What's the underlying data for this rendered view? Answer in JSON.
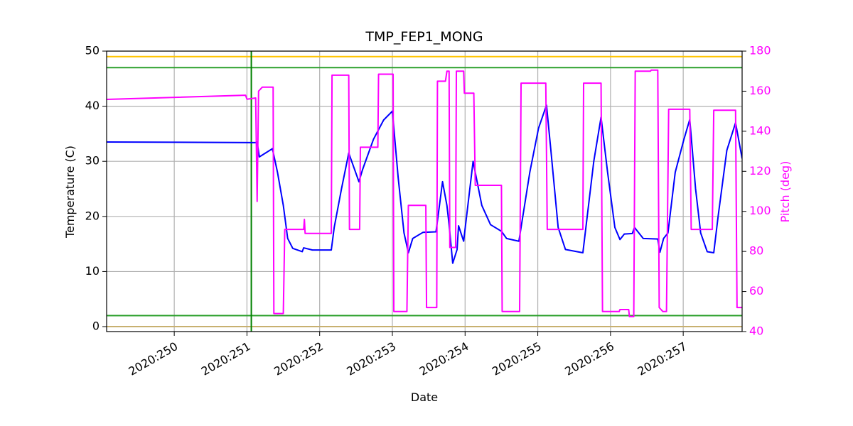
{
  "chart_data": {
    "type": "line",
    "title": "TMP_FEP1_MONG",
    "xlabel": "Date",
    "ylabel": "Temperature (C)",
    "y2label": "Pitch (deg)",
    "y2color": "#ff00ff",
    "grid": true,
    "xlim": [
      249.07,
      257.81
    ],
    "xticks": [
      {
        "value": 250,
        "label": "2020:250"
      },
      {
        "value": 251,
        "label": "2020:251"
      },
      {
        "value": 252,
        "label": "2020:252"
      },
      {
        "value": 253,
        "label": "2020:253"
      },
      {
        "value": 254,
        "label": "2020:254"
      },
      {
        "value": 255,
        "label": "2020:255"
      },
      {
        "value": 256,
        "label": "2020:256"
      },
      {
        "value": 257,
        "label": "2020:257"
      }
    ],
    "ylim": [
      -0.9,
      50
    ],
    "yticks": [
      0,
      10,
      20,
      30,
      40,
      50
    ],
    "y2lim": [
      40,
      180
    ],
    "y2ticks": [
      40,
      60,
      80,
      100,
      120,
      140,
      160,
      180
    ],
    "hlines": [
      {
        "value": 49,
        "color": "#ffc400"
      },
      {
        "value": 47,
        "color": "#2ca02c"
      },
      {
        "value": 2,
        "color": "#2ca02c"
      },
      {
        "value": 0,
        "color": "#c8b070"
      }
    ],
    "vlines": [
      {
        "value": 251.06,
        "color": "#008000"
      }
    ],
    "series": [
      {
        "name": "TMP_FEP1_MONG",
        "color": "#0000ff",
        "x": [
          249.07,
          251.12,
          251.14,
          251.17,
          251.35,
          251.42,
          251.5,
          251.56,
          251.63,
          251.76,
          251.78,
          251.9,
          252.16,
          252.2,
          252.3,
          252.4,
          252.54,
          252.59,
          252.74,
          252.88,
          253.0,
          253.08,
          253.16,
          253.22,
          253.28,
          253.42,
          253.6,
          253.69,
          253.75,
          253.78,
          253.83,
          253.89,
          253.91,
          253.98,
          254.11,
          254.23,
          254.35,
          254.5,
          254.57,
          254.74,
          254.89,
          255.01,
          255.12,
          255.18,
          255.28,
          255.38,
          255.62,
          255.77,
          255.87,
          255.96,
          256.06,
          256.13,
          256.19,
          256.3,
          256.33,
          256.45,
          256.65,
          256.68,
          256.73,
          256.79,
          256.89,
          257.01,
          257.09,
          257.17,
          257.24,
          257.33,
          257.42,
          257.48,
          257.6,
          257.72,
          257.81
        ],
        "values": [
          33.5,
          33.4,
          33.5,
          30.8,
          32.3,
          28,
          22,
          16,
          14.2,
          13.6,
          14.3,
          13.9,
          13.9,
          18,
          25,
          31.5,
          26.3,
          28.5,
          34,
          37.5,
          39.1,
          27,
          17,
          13.4,
          16,
          17.1,
          17.2,
          26.3,
          22,
          18.5,
          11.5,
          14,
          18.3,
          15.5,
          30,
          22,
          18.5,
          17.3,
          16,
          15.5,
          28,
          36,
          40.2,
          32,
          18,
          14,
          13.4,
          30,
          38,
          28,
          18,
          15.8,
          16.8,
          16.9,
          18,
          16,
          15.9,
          13.5,
          16,
          17,
          28,
          34,
          37.6,
          25,
          17,
          13.6,
          13.4,
          20,
          32,
          37,
          30.5
        ]
      },
      {
        "name": "Pitch",
        "color": "#ff00ff",
        "axis": "y2",
        "x": [
          249.07,
          250.98,
          251.0,
          251.12,
          251.14,
          251.16,
          251.21,
          251.36,
          251.37,
          251.5,
          251.52,
          251.78,
          251.79,
          251.8,
          252.16,
          252.17,
          252.4,
          252.41,
          252.55,
          252.56,
          252.8,
          252.81,
          253.01,
          253.02,
          253.2,
          253.22,
          253.46,
          253.47,
          253.61,
          253.62,
          253.73,
          253.75,
          253.78,
          253.79,
          253.87,
          253.88,
          253.98,
          253.99,
          254.12,
          254.14,
          254.5,
          254.51,
          254.75,
          254.77,
          255.11,
          255.13,
          255.62,
          255.63,
          255.87,
          255.89,
          256.12,
          256.13,
          256.25,
          256.26,
          256.32,
          256.34,
          256.55,
          256.56,
          256.65,
          256.67,
          256.72,
          256.77,
          256.8,
          257.09,
          257.11,
          257.4,
          257.42,
          257.72,
          257.74,
          257.81
        ],
        "values": [
          155.9,
          158,
          156,
          156.6,
          105,
          160,
          162,
          162,
          49,
          49,
          91,
          91,
          96,
          89,
          89,
          168,
          168,
          91,
          91,
          132,
          132,
          168.5,
          168.5,
          50,
          50,
          103,
          103,
          52,
          52,
          165,
          165,
          170,
          170,
          82,
          82,
          170,
          170,
          159,
          159,
          113,
          113,
          50,
          50,
          164,
          164,
          91,
          91,
          164,
          164,
          50,
          50,
          51,
          51,
          47.5,
          47.5,
          170,
          170,
          170.5,
          170.5,
          52,
          50,
          50,
          151,
          151,
          91,
          91,
          150.5,
          150.5,
          52,
          52
        ]
      }
    ]
  }
}
